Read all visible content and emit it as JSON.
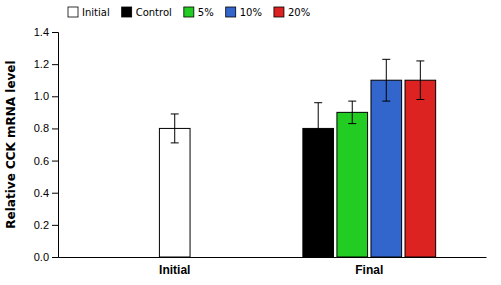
{
  "chart_data": {
    "type": "bar",
    "ylabel": "Relative CCK mRNA level",
    "categories": [
      "Initial",
      "Final"
    ],
    "series": [
      {
        "name": "Initial",
        "color": "#ffffff",
        "values": [
          0.8,
          null
        ],
        "errors": [
          0.09,
          null
        ]
      },
      {
        "name": "Control",
        "color": "#000000",
        "values": [
          null,
          0.8
        ],
        "errors": [
          null,
          0.16
        ]
      },
      {
        "name": "5%",
        "color": "#22cc22",
        "values": [
          null,
          0.9
        ],
        "errors": [
          null,
          0.07
        ]
      },
      {
        "name": "10%",
        "color": "#3366cc",
        "values": [
          null,
          1.1
        ],
        "errors": [
          null,
          0.13
        ]
      },
      {
        "name": "20%",
        "color": "#dd2222",
        "values": [
          null,
          1.1
        ],
        "errors": [
          null,
          0.12
        ]
      }
    ],
    "ylim": [
      0.0,
      1.4
    ],
    "yticks": [
      {
        "value": 0.0,
        "label": "0.0"
      },
      0.2,
      0.4,
      0.6,
      0.8,
      {
        "value": 1.0,
        "label": "1.0"
      },
      1.2,
      1.4
    ],
    "grid": false,
    "legend": "upper left"
  }
}
